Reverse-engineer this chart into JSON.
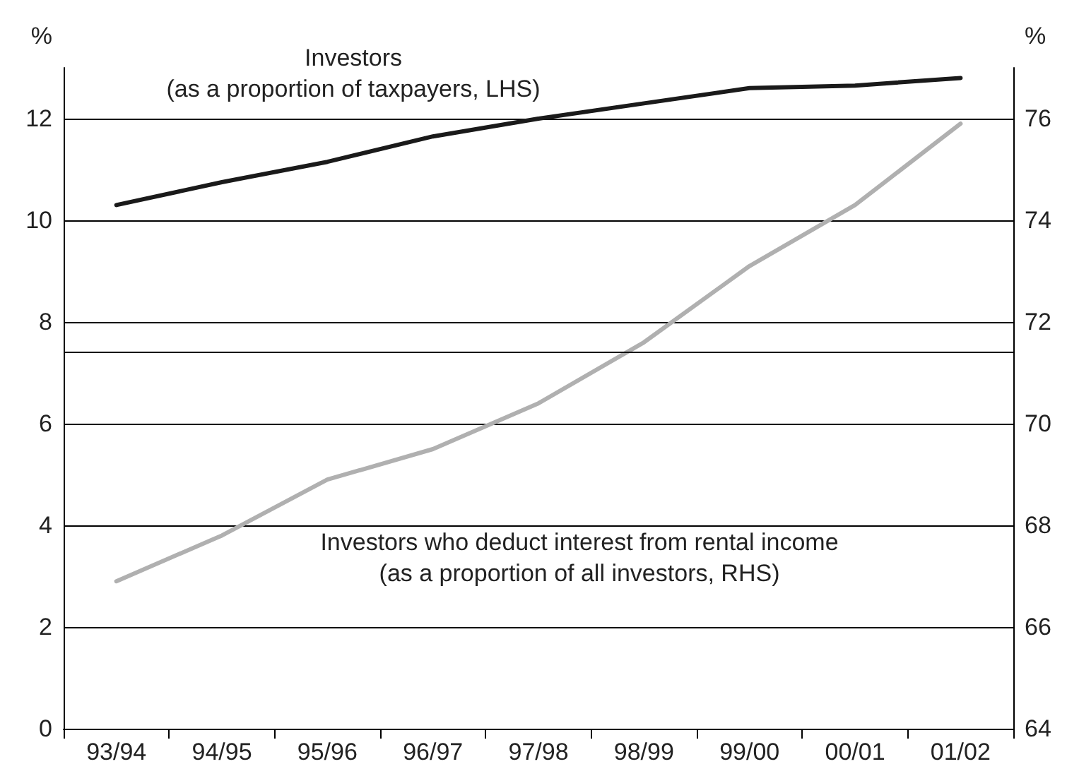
{
  "chart_data": {
    "type": "line",
    "categories": [
      "93/94",
      "94/95",
      "95/96",
      "96/97",
      "97/98",
      "98/99",
      "99/00",
      "00/01",
      "01/02"
    ],
    "ylabel": "%",
    "y2label": "%",
    "ylim": [
      0,
      13
    ],
    "yticks": [
      0,
      2,
      4,
      6,
      8,
      10,
      12
    ],
    "y2lim": [
      64,
      77
    ],
    "y2ticks": [
      64,
      66,
      68,
      70,
      72,
      74,
      76
    ],
    "series": [
      {
        "color": "#1a1a1a",
        "values": [
          10.3,
          10.75,
          11.15,
          11.65,
          12.0,
          12.3,
          12.6,
          12.65,
          12.8
        ]
      },
      {
        "color": "#b0b0b0",
        "axis": "y2",
        "values": [
          66.9,
          67.8,
          68.9,
          69.5,
          70.4,
          71.6,
          73.1,
          74.3,
          75.9
        ]
      }
    ],
    "annotations": [
      "Investors\n(as a proportion of taxpayers, LHS)",
      "Investors who deduct interest from rental income\n(as a proportion of all investors, RHS)"
    ],
    "ref_lines": [
      {
        "axis": "y",
        "value": 7.4,
        "color": "#000000"
      }
    ],
    "grid": "y",
    "marker": "none",
    "line_style": "solid"
  }
}
